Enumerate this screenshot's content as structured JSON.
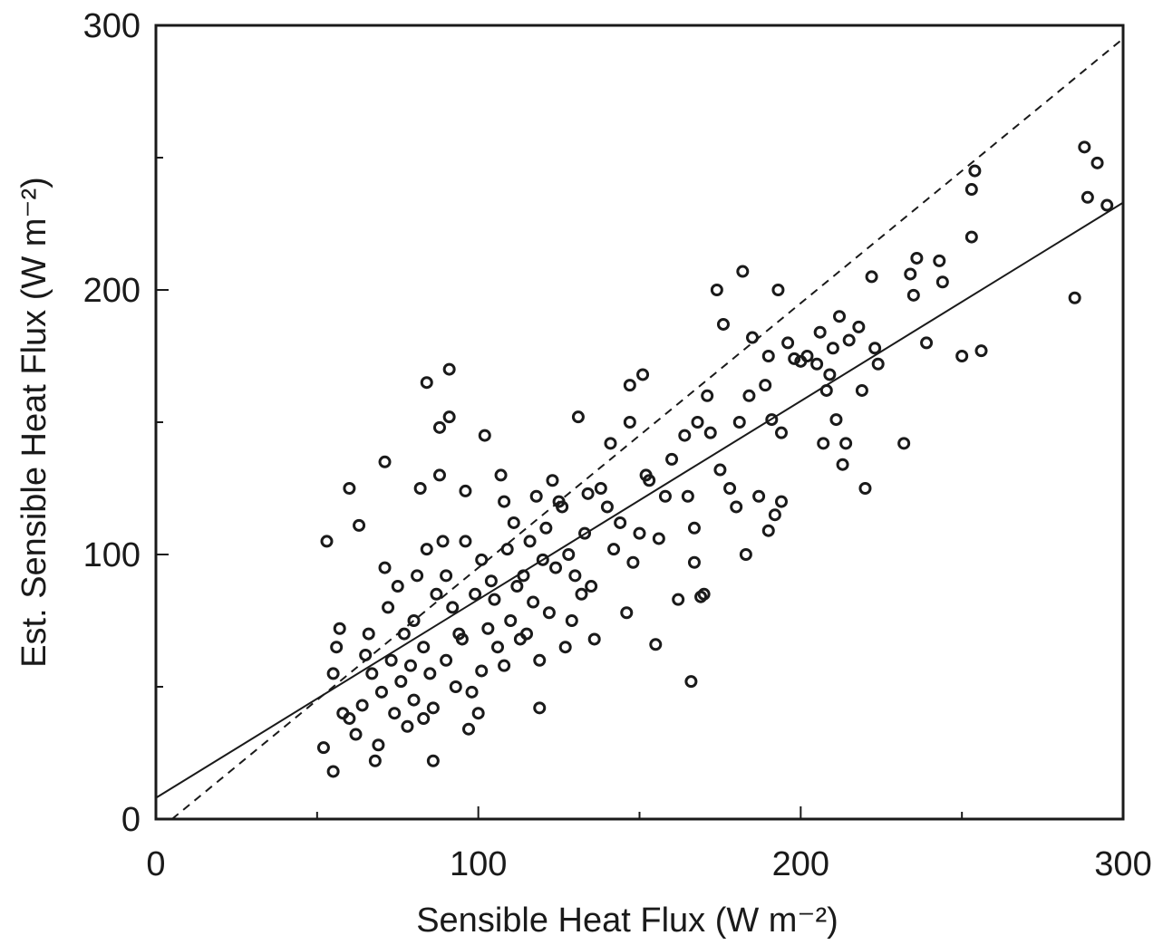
{
  "chart_data": {
    "type": "scatter",
    "title": "",
    "xlabel": "Sensible Heat Flux (W m⁻²)",
    "ylabel": "Est. Sensible Heat Flux (W m⁻²)",
    "xlim": [
      0,
      300
    ],
    "ylim": [
      0,
      300
    ],
    "xticks": [
      0,
      100,
      200,
      300
    ],
    "yticks": [
      0,
      100,
      200,
      300
    ],
    "xtick_labels": [
      "0",
      "100",
      "200",
      "300"
    ],
    "ytick_labels": [
      "0",
      "100",
      "200",
      "300"
    ],
    "grid": false,
    "legend": "none",
    "colors": {
      "marks": "#1a1a1a",
      "background": "#ffffff"
    },
    "lines": [
      {
        "style": "solid",
        "slope": 0.75,
        "intercept": 8
      },
      {
        "style": "dashed",
        "slope": 1.0,
        "intercept": -5
      }
    ],
    "series": [
      {
        "points": [
          [
            52,
            27
          ],
          [
            55,
            18
          ],
          [
            57,
            72
          ],
          [
            58,
            40
          ],
          [
            60,
            125
          ],
          [
            63,
            111
          ],
          [
            53,
            105
          ],
          [
            55,
            55
          ],
          [
            56,
            65
          ],
          [
            60,
            38
          ],
          [
            62,
            32
          ],
          [
            64,
            43
          ],
          [
            65,
            62
          ],
          [
            66,
            70
          ],
          [
            67,
            55
          ],
          [
            68,
            22
          ],
          [
            69,
            28
          ],
          [
            70,
            48
          ],
          [
            71,
            135
          ],
          [
            71,
            95
          ],
          [
            72,
            80
          ],
          [
            73,
            60
          ],
          [
            74,
            40
          ],
          [
            75,
            88
          ],
          [
            76,
            52
          ],
          [
            77,
            70
          ],
          [
            78,
            35
          ],
          [
            79,
            58
          ],
          [
            80,
            75
          ],
          [
            80,
            45
          ],
          [
            81,
            92
          ],
          [
            82,
            125
          ],
          [
            83,
            65
          ],
          [
            83,
            38
          ],
          [
            84,
            165
          ],
          [
            84,
            102
          ],
          [
            85,
            55
          ],
          [
            86,
            22
          ],
          [
            86,
            42
          ],
          [
            87,
            85
          ],
          [
            88,
            130
          ],
          [
            88,
            148
          ],
          [
            89,
            105
          ],
          [
            90,
            60
          ],
          [
            90,
            92
          ],
          [
            91,
            170
          ],
          [
            91,
            152
          ],
          [
            92,
            80
          ],
          [
            93,
            50
          ],
          [
            94,
            70
          ],
          [
            95,
            68
          ],
          [
            96,
            124
          ],
          [
            96,
            105
          ],
          [
            97,
            34
          ],
          [
            98,
            48
          ],
          [
            99,
            85
          ],
          [
            100,
            40
          ],
          [
            101,
            56
          ],
          [
            101,
            98
          ],
          [
            102,
            145
          ],
          [
            103,
            72
          ],
          [
            104,
            90
          ],
          [
            105,
            83
          ],
          [
            106,
            65
          ],
          [
            107,
            130
          ],
          [
            108,
            120
          ],
          [
            108,
            58
          ],
          [
            109,
            102
          ],
          [
            110,
            75
          ],
          [
            111,
            112
          ],
          [
            112,
            88
          ],
          [
            113,
            68
          ],
          [
            114,
            92
          ],
          [
            115,
            70
          ],
          [
            116,
            105
          ],
          [
            117,
            82
          ],
          [
            118,
            122
          ],
          [
            119,
            60
          ],
          [
            119,
            42
          ],
          [
            120,
            98
          ],
          [
            121,
            110
          ],
          [
            122,
            78
          ],
          [
            123,
            128
          ],
          [
            124,
            95
          ],
          [
            125,
            120
          ],
          [
            126,
            118
          ],
          [
            127,
            65
          ],
          [
            128,
            100
          ],
          [
            129,
            75
          ],
          [
            130,
            92
          ],
          [
            131,
            152
          ],
          [
            132,
            85
          ],
          [
            133,
            108
          ],
          [
            134,
            123
          ],
          [
            135,
            88
          ],
          [
            136,
            68
          ],
          [
            138,
            125
          ],
          [
            140,
            118
          ],
          [
            141,
            142
          ],
          [
            142,
            102
          ],
          [
            144,
            112
          ],
          [
            146,
            78
          ],
          [
            147,
            150
          ],
          [
            147,
            164
          ],
          [
            148,
            97
          ],
          [
            150,
            108
          ],
          [
            151,
            168
          ],
          [
            152,
            130
          ],
          [
            153,
            128
          ],
          [
            155,
            66
          ],
          [
            156,
            106
          ],
          [
            158,
            122
          ],
          [
            160,
            136
          ],
          [
            162,
            83
          ],
          [
            164,
            145
          ],
          [
            165,
            122
          ],
          [
            166,
            52
          ],
          [
            167,
            110
          ],
          [
            167,
            97
          ],
          [
            168,
            150
          ],
          [
            169,
            84
          ],
          [
            170,
            85
          ],
          [
            171,
            160
          ],
          [
            172,
            146
          ],
          [
            174,
            200
          ],
          [
            175,
            132
          ],
          [
            176,
            187
          ],
          [
            178,
            125
          ],
          [
            180,
            118
          ],
          [
            181,
            150
          ],
          [
            182,
            207
          ],
          [
            183,
            100
          ],
          [
            184,
            160
          ],
          [
            185,
            182
          ],
          [
            187,
            122
          ],
          [
            189,
            164
          ],
          [
            190,
            175
          ],
          [
            190,
            109
          ],
          [
            191,
            151
          ],
          [
            192,
            115
          ],
          [
            193,
            200
          ],
          [
            194,
            120
          ],
          [
            194,
            146
          ],
          [
            196,
            180
          ],
          [
            198,
            174
          ],
          [
            200,
            173
          ],
          [
            202,
            175
          ],
          [
            205,
            172
          ],
          [
            206,
            184
          ],
          [
            207,
            142
          ],
          [
            208,
            162
          ],
          [
            209,
            168
          ],
          [
            210,
            178
          ],
          [
            211,
            151
          ],
          [
            212,
            190
          ],
          [
            213,
            134
          ],
          [
            214,
            142
          ],
          [
            215,
            181
          ],
          [
            218,
            186
          ],
          [
            219,
            162
          ],
          [
            220,
            125
          ],
          [
            222,
            205
          ],
          [
            223,
            178
          ],
          [
            224,
            172
          ],
          [
            232,
            142
          ],
          [
            234,
            206
          ],
          [
            235,
            198
          ],
          [
            236,
            212
          ],
          [
            239,
            180
          ],
          [
            243,
            211
          ],
          [
            244,
            203
          ],
          [
            250,
            175
          ],
          [
            253,
            238
          ],
          [
            253,
            220
          ],
          [
            254,
            245
          ],
          [
            256,
            177
          ],
          [
            285,
            197
          ],
          [
            288,
            254
          ],
          [
            289,
            235
          ],
          [
            292,
            248
          ],
          [
            295,
            232
          ]
        ]
      }
    ]
  }
}
